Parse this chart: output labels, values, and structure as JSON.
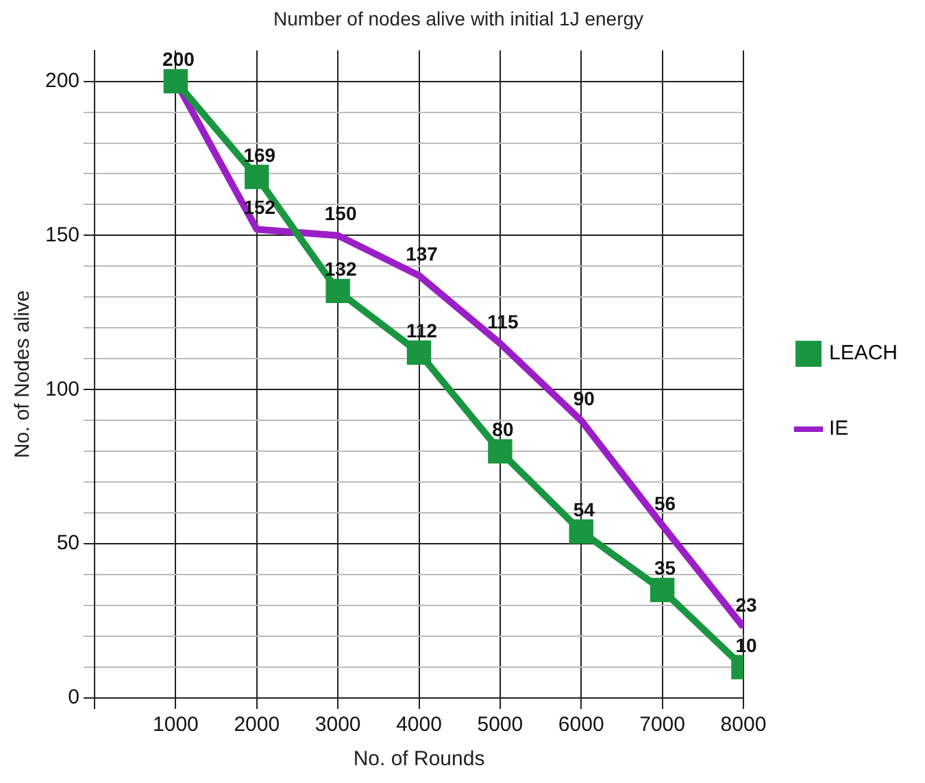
{
  "chart_data": {
    "type": "line",
    "title": "Number of nodes alive with initial 1J energy",
    "xlabel": "No. of Rounds",
    "ylabel": "No. of Nodes alive",
    "x": [
      1000,
      2000,
      3000,
      4000,
      5000,
      6000,
      7000,
      8000
    ],
    "series": [
      {
        "name": "LEACH",
        "color": "#1a9641",
        "marker": "square",
        "values": [
          200,
          169,
          132,
          112,
          80,
          54,
          35,
          10
        ],
        "value_labels": [
          "200",
          "169",
          "132",
          "112",
          "80",
          "54",
          "35",
          "10"
        ]
      },
      {
        "name": "IE",
        "color": "#9b1fc6",
        "marker": "none",
        "values": [
          200,
          152,
          150,
          137,
          115,
          90,
          56,
          23
        ],
        "value_labels": [
          null,
          "152",
          "150",
          "137",
          "115",
          "90",
          "56",
          "23"
        ]
      }
    ],
    "xlim": [
      0,
      8000
    ],
    "xticks": [
      {
        "value": 0,
        "label": null
      },
      1000,
      2000,
      3000,
      4000,
      5000,
      6000,
      7000,
      8000
    ],
    "ylim": [
      0,
      210
    ],
    "yticks": [
      0,
      {
        "value": 10,
        "label": null
      },
      {
        "value": 20,
        "label": null
      },
      {
        "value": 30,
        "label": null
      },
      {
        "value": 40,
        "label": null
      },
      50,
      {
        "value": 60,
        "label": null
      },
      {
        "value": 70,
        "label": null
      },
      {
        "value": 80,
        "label": null
      },
      {
        "value": 90,
        "label": null
      },
      100,
      {
        "value": 110,
        "label": null
      },
      {
        "value": 120,
        "label": null
      },
      {
        "value": 130,
        "label": null
      },
      {
        "value": 140,
        "label": null
      },
      150,
      {
        "value": 160,
        "label": null
      },
      {
        "value": 170,
        "label": null
      },
      {
        "value": 180,
        "label": null
      },
      {
        "value": 190,
        "label": null
      },
      200
    ],
    "grid": true,
    "legend": "right",
    "line_style": "solid"
  }
}
